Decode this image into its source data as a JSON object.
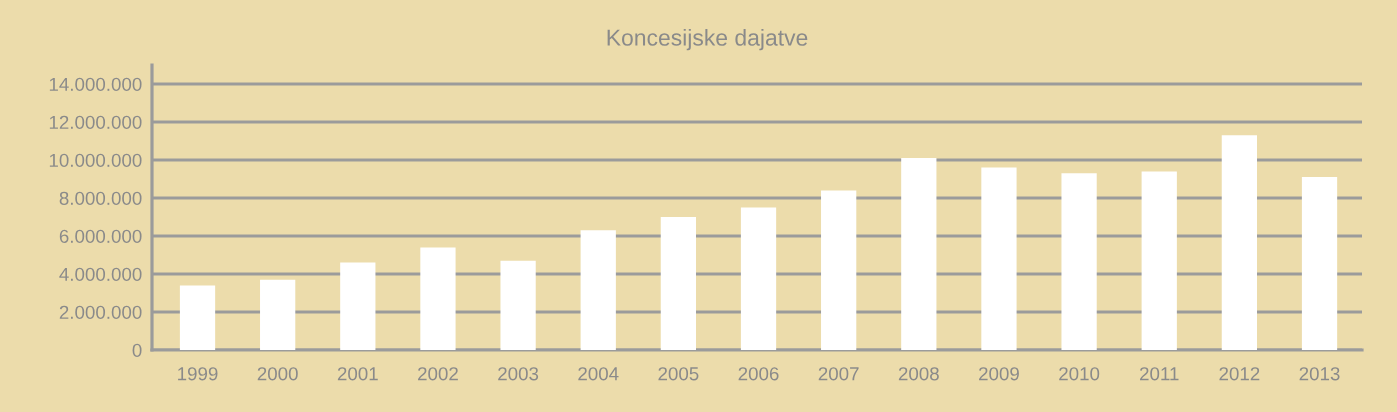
{
  "chart_data": {
    "type": "bar",
    "title": "Koncesijske dajatve",
    "categories": [
      "1999",
      "2000",
      "2001",
      "2002",
      "2003",
      "2004",
      "2005",
      "2006",
      "2007",
      "2008",
      "2009",
      "2010",
      "2011",
      "2012",
      "2013"
    ],
    "values": [
      3400000,
      3700000,
      4600000,
      5400000,
      4700000,
      6300000,
      7000000,
      7500000,
      8400000,
      10100000,
      9600000,
      9300000,
      9400000,
      11300000,
      9100000
    ],
    "color": "#ffffff",
    "ylim": [
      0,
      15000000
    ],
    "yticks": [
      0,
      {
        "value": 2000000,
        "label": "2.000.000"
      },
      {
        "value": 4000000,
        "label": "4.000.000"
      },
      {
        "value": 6000000,
        "label": "6.000.000"
      },
      {
        "value": 8000000,
        "label": "8.000.000"
      },
      {
        "value": 10000000,
        "label": "10.000.000"
      },
      {
        "value": 12000000,
        "label": "12.000.000"
      },
      {
        "value": 14000000,
        "label": "14.000.000"
      }
    ],
    "grid": "y"
  }
}
